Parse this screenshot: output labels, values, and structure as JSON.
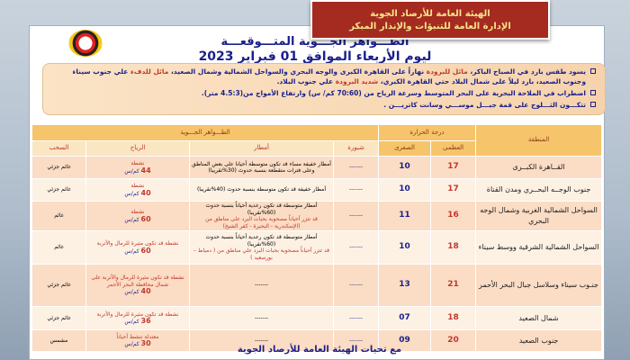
{
  "banner": {
    "line1": "الهيئة العامة للأرصاد الجوية",
    "line2": "الإدارة العامة للتنبؤات والإنذار المبكر"
  },
  "title": {
    "line1": "الظـــواهر الجـــوية المتـــوقعـــة",
    "line2": "ليوم الأربعاء الموافق 01 فبراير 2023"
  },
  "bullets": [
    {
      "a": "يسود طقس بارد في الصباح الباكر، ",
      "b": "مائل للبرودة",
      "c": " نهاراً على القاهرة الكبرى والوجه البحري والسواحل الشمالية وشمال الصعيد، ",
      "d": "مائل للدفء",
      "e": " علي جنوب سيناء وجنوب الصعيد، بارد ليلاً على شمال البلاد حتي القاهرة الكبري، ",
      "f": "شديد البرودة",
      "g": " علي جنوب البلاد."
    },
    {
      "a": "اضطراب في الملاحة البحرية على البحر المتوسط وسرعة الرياح من (70:60 كم/ س) وارتفاع الأمواج من(4.5:3 متر)."
    },
    {
      "a": "تتكـــون الثـــلوج على قمة جبـــل موســـي وسانت كاتريـــن ."
    }
  ],
  "table": {
    "headers": {
      "region": "المنطقة",
      "temp": "درجة الحرارة",
      "max": "العظمى",
      "min": "الصغرى",
      "phenomena": "الظـــواهر الجـــوية",
      "fog": "شبورة",
      "rain": "أمطار",
      "wind": "الرياح",
      "clouds": "السحب"
    },
    "rows": [
      {
        "region": "القــاهرة الكبــرى",
        "max": "17",
        "min": "10",
        "fog": "-------",
        "rain": "أمطار خفيفة مساء قد تكون متوسطة أحيانا على بعض المناطق وعلى فترات متقطعة بنسبة حدوث (30%تقريبا)",
        "rain_warn": "",
        "wind": "نشطة",
        "wind_speed": "44",
        "wind_unit": "كم/س",
        "clouds": "غائم جزئي"
      },
      {
        "region": "جنوب الوجــه البحــري ومدن القناة",
        "max": "17",
        "min": "10",
        "fog": "-------",
        "rain": "أمطار خفيفة قد تكون متوسطة بنسبة حدوث (40%تقريبا)",
        "rain_warn": "",
        "wind": "نشطة",
        "wind_speed": "40",
        "wind_unit": "كم/س",
        "clouds": "غائم جزئي"
      },
      {
        "region": "السواحل الشمالية الغربية وشمال الوجه البحري",
        "max": "16",
        "min": "11",
        "fog": "-------",
        "rain": "أمطار متوسطة قد تكون رعدية أحياناً بنسبة حدوث (60%تقريبا)",
        "rain_warn": "قد تتزر أحياناً مصحوبة بحبات البرد على مناطق من (الإسكندرية - البحيرة - كفر الشيخ)",
        "wind": "نشطة",
        "wind_speed": "60",
        "wind_unit": "كم/س",
        "clouds": "غائم"
      },
      {
        "region": "السواحل الشمالية الشرقية ووسط سيناء",
        "max": "18",
        "min": "10",
        "fog": "-------",
        "rain": "أمطار متوسطة قد تكون رعدية أحياناً بنسبة حدوث (60%تقريبا)",
        "rain_warn": "قد تتزر أحياناً مصحوبة بحبات البرد علي مناطق من ( دمياط – بورسعيد )",
        "wind": "نشطة قد تكون مثيرة للرمال والأتربة",
        "wind_speed": "60",
        "wind_unit": "كم/س",
        "clouds": "غائم"
      },
      {
        "region": "جنـوب سيناء وسلاسل جبال البحر الأحمر",
        "max": "21",
        "min": "13",
        "fog": "-------",
        "rain": "-------",
        "rain_warn": "",
        "wind": "نشطة قد تكون مثيرة للرمال والأتربة على شمال محافظة البحر الأحمر",
        "wind_speed": "40",
        "wind_unit": "كم/س",
        "clouds": "غائم جزئي"
      },
      {
        "region": "شمال الصعيد",
        "max": "18",
        "min": "07",
        "fog": "-------",
        "rain": "-------",
        "rain_warn": "",
        "wind": "نشطة قد تكون مثيرة للرمال والأتربة",
        "wind_speed": "36",
        "wind_unit": "كم/س",
        "clouds": "غائم جزئي"
      },
      {
        "region": "جنوب الصعيد",
        "max": "20",
        "min": "09",
        "fog": "-------",
        "rain": "-------",
        "rain_warn": "",
        "wind": "معتدلة تنشط أحياناً",
        "wind_speed": "30",
        "wind_unit": "كم/س",
        "clouds": "مشمس"
      }
    ]
  },
  "footer": "مع تحيات الهيئة العامة للأرصاد الجوية"
}
